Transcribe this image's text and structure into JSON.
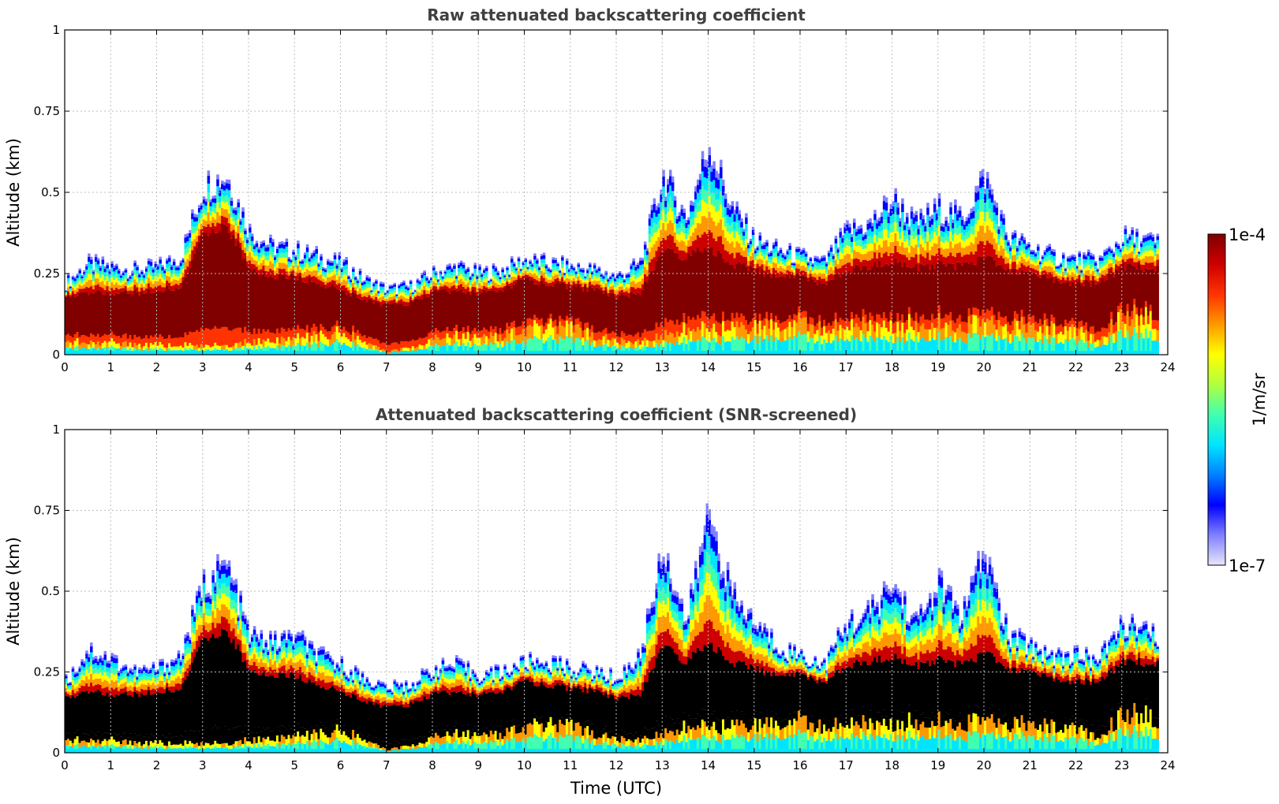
{
  "chart_data": [
    {
      "type": "heatmap",
      "title": "Raw attenuated backscattering coefficient",
      "xlabel": "",
      "ylabel": "Altitude (km)",
      "xlim": [
        0,
        24
      ],
      "ylim": [
        0,
        1
      ],
      "xticks": [
        "0",
        "1",
        "2",
        "3",
        "4",
        "5",
        "6",
        "7",
        "8",
        "9",
        "10",
        "11",
        "12",
        "13",
        "14",
        "15",
        "16",
        "17",
        "18",
        "19",
        "20",
        "21",
        "22",
        "23",
        "24"
      ],
      "yticks": [
        "0",
        "0.25",
        "0.5",
        "0.75",
        "1"
      ],
      "grid": true,
      "profile": {
        "time_utc": [
          0,
          0.5,
          1,
          1.5,
          2,
          2.5,
          3,
          3.5,
          4,
          4.5,
          5,
          5.5,
          6,
          6.5,
          7,
          7.5,
          8,
          8.5,
          9,
          9.5,
          10,
          10.5,
          11,
          11.5,
          12,
          12.5,
          13,
          13.5,
          14,
          14.5,
          15,
          15.5,
          16,
          16.5,
          17,
          17.5,
          18,
          18.5,
          19,
          19.5,
          20,
          20.5,
          21,
          21.5,
          22,
          22.5,
          23,
          23.5,
          23.8
        ],
        "signal_top_km": [
          0.22,
          0.28,
          0.27,
          0.26,
          0.27,
          0.3,
          0.52,
          0.55,
          0.38,
          0.33,
          0.32,
          0.3,
          0.28,
          0.23,
          0.2,
          0.21,
          0.25,
          0.27,
          0.25,
          0.26,
          0.29,
          0.28,
          0.27,
          0.26,
          0.24,
          0.28,
          0.55,
          0.42,
          0.65,
          0.45,
          0.35,
          0.32,
          0.3,
          0.28,
          0.38,
          0.4,
          0.48,
          0.4,
          0.45,
          0.42,
          0.55,
          0.36,
          0.33,
          0.3,
          0.29,
          0.29,
          0.36,
          0.35,
          0.34
        ],
        "layer_top_km": [
          0.18,
          0.19,
          0.19,
          0.19,
          0.2,
          0.21,
          0.38,
          0.4,
          0.27,
          0.24,
          0.24,
          0.22,
          0.2,
          0.17,
          0.15,
          0.16,
          0.19,
          0.2,
          0.19,
          0.2,
          0.23,
          0.22,
          0.21,
          0.2,
          0.18,
          0.19,
          0.32,
          0.3,
          0.33,
          0.28,
          0.26,
          0.24,
          0.24,
          0.22,
          0.26,
          0.27,
          0.29,
          0.27,
          0.28,
          0.27,
          0.3,
          0.26,
          0.25,
          0.23,
          0.22,
          0.22,
          0.27,
          0.27,
          0.27
        ],
        "layer_base_km": [
          0.04,
          0.04,
          0.04,
          0.03,
          0.03,
          0.03,
          0.03,
          0.03,
          0.04,
          0.04,
          0.05,
          0.06,
          0.07,
          0.04,
          0.01,
          0.02,
          0.05,
          0.06,
          0.05,
          0.06,
          0.08,
          0.09,
          0.08,
          0.06,
          0.04,
          0.04,
          0.06,
          0.08,
          0.08,
          0.08,
          0.09,
          0.1,
          0.1,
          0.08,
          0.09,
          0.1,
          0.09,
          0.1,
          0.1,
          0.09,
          0.1,
          0.09,
          0.09,
          0.08,
          0.07,
          0.05,
          0.12,
          0.12,
          0.1
        ]
      }
    },
    {
      "type": "heatmap",
      "title": "Attenuated backscattering coefficient (SNR-screened)",
      "xlabel": "Time (UTC)",
      "ylabel": "Altitude (km)",
      "xlim": [
        0,
        24
      ],
      "ylim": [
        0,
        1
      ],
      "xticks": [
        "0",
        "1",
        "2",
        "3",
        "4",
        "5",
        "6",
        "7",
        "8",
        "9",
        "10",
        "11",
        "12",
        "13",
        "14",
        "15",
        "16",
        "17",
        "18",
        "19",
        "20",
        "21",
        "22",
        "23",
        "24"
      ],
      "yticks": [
        "0",
        "0.25",
        "0.5",
        "0.75",
        "1"
      ],
      "grid": true,
      "profile": {
        "time_utc": [
          0,
          0.5,
          1,
          1.5,
          2,
          2.5,
          3,
          3.5,
          4,
          4.5,
          5,
          5.5,
          6,
          6.5,
          7,
          7.5,
          8,
          8.5,
          9,
          9.5,
          10,
          10.5,
          11,
          11.5,
          12,
          12.5,
          13,
          13.5,
          14,
          14.5,
          15,
          15.5,
          16,
          16.5,
          17,
          17.5,
          18,
          18.5,
          19,
          19.5,
          20,
          20.5,
          21,
          21.5,
          22,
          22.5,
          23,
          23.5,
          23.8
        ],
        "signal_top_km": [
          0.22,
          0.32,
          0.29,
          0.25,
          0.26,
          0.3,
          0.52,
          0.58,
          0.36,
          0.34,
          0.36,
          0.3,
          0.27,
          0.23,
          0.2,
          0.21,
          0.26,
          0.27,
          0.24,
          0.25,
          0.28,
          0.28,
          0.26,
          0.25,
          0.23,
          0.3,
          0.64,
          0.4,
          0.75,
          0.48,
          0.4,
          0.33,
          0.3,
          0.27,
          0.4,
          0.43,
          0.52,
          0.4,
          0.52,
          0.42,
          0.62,
          0.36,
          0.33,
          0.3,
          0.3,
          0.29,
          0.4,
          0.37,
          0.35
        ],
        "layer_top_km": [
          0.17,
          0.19,
          0.18,
          0.18,
          0.19,
          0.2,
          0.36,
          0.38,
          0.26,
          0.24,
          0.24,
          0.21,
          0.19,
          0.16,
          0.14,
          0.15,
          0.18,
          0.19,
          0.18,
          0.19,
          0.22,
          0.21,
          0.2,
          0.19,
          0.17,
          0.18,
          0.33,
          0.28,
          0.34,
          0.28,
          0.26,
          0.24,
          0.24,
          0.22,
          0.27,
          0.28,
          0.3,
          0.27,
          0.29,
          0.27,
          0.31,
          0.26,
          0.25,
          0.23,
          0.22,
          0.22,
          0.28,
          0.28,
          0.28
        ],
        "layer_base_km": [
          0.04,
          0.04,
          0.04,
          0.03,
          0.03,
          0.03,
          0.03,
          0.03,
          0.04,
          0.04,
          0.05,
          0.06,
          0.07,
          0.04,
          0.01,
          0.02,
          0.05,
          0.06,
          0.05,
          0.06,
          0.08,
          0.09,
          0.08,
          0.06,
          0.04,
          0.04,
          0.06,
          0.08,
          0.08,
          0.08,
          0.09,
          0.1,
          0.1,
          0.08,
          0.09,
          0.1,
          0.09,
          0.1,
          0.1,
          0.09,
          0.1,
          0.09,
          0.09,
          0.08,
          0.07,
          0.05,
          0.12,
          0.12,
          0.1
        ]
      }
    }
  ],
  "colorbar": {
    "label": "1/m/sr",
    "min_label": "1e-7",
    "max_label": "1e-4",
    "scale": "log",
    "range": [
      1e-07,
      0.0001
    ],
    "colormap": [
      "#e6e6fa",
      "#8080ff",
      "#0000ff",
      "#0080ff",
      "#00e5ff",
      "#40ffb0",
      "#b0ff40",
      "#ffff00",
      "#ff9900",
      "#ff3300",
      "#cc0000",
      "#800000"
    ],
    "screened_saturation_color": "#000000"
  }
}
